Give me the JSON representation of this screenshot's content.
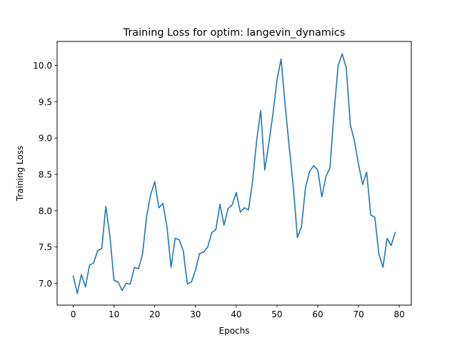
{
  "chart_data": {
    "type": "line",
    "title": "Training Loss for optim: langevin_dynamics",
    "xlabel": "Epochs",
    "ylabel": "Training Loss",
    "xlim": [
      -3.95,
      82.95
    ],
    "ylim": [
      6.7,
      10.33
    ],
    "xticks": [
      0,
      10,
      20,
      30,
      40,
      50,
      60,
      70,
      80
    ],
    "yticks": [
      7.0,
      7.5,
      8.0,
      8.5,
      9.0,
      9.5,
      10.0
    ],
    "xtick_labels": [
      "0",
      "10",
      "20",
      "30",
      "40",
      "50",
      "60",
      "70",
      "80"
    ],
    "ytick_labels": [
      "7.0",
      "7.5",
      "8.0",
      "8.5",
      "9.0",
      "9.5",
      "10.0"
    ],
    "grid": false,
    "legend": "none",
    "series": [
      {
        "color": "#1f77b4",
        "x": [
          0,
          1,
          2,
          3,
          4,
          5,
          6,
          7,
          8,
          9,
          10,
          11,
          12,
          13,
          14,
          15,
          16,
          17,
          18,
          19,
          20,
          21,
          22,
          23,
          24,
          25,
          26,
          27,
          28,
          29,
          30,
          31,
          32,
          33,
          34,
          35,
          36,
          37,
          38,
          39,
          40,
          41,
          42,
          43,
          44,
          45,
          46,
          47,
          48,
          49,
          50,
          51,
          52,
          53,
          54,
          55,
          56,
          57,
          58,
          59,
          60,
          61,
          62,
          63,
          64,
          65,
          66,
          67,
          68,
          69,
          70,
          71,
          72,
          73,
          74,
          75,
          76,
          77,
          78,
          79
        ],
        "values": [
          7.1,
          6.86,
          7.12,
          6.95,
          7.25,
          7.28,
          7.45,
          7.48,
          8.06,
          7.65,
          7.04,
          7.02,
          6.9,
          7.0,
          6.99,
          7.22,
          7.2,
          7.4,
          7.92,
          8.22,
          8.4,
          8.04,
          8.1,
          7.78,
          7.22,
          7.62,
          7.6,
          7.45,
          6.99,
          7.02,
          7.18,
          7.41,
          7.43,
          7.5,
          7.7,
          7.74,
          8.09,
          7.8,
          8.03,
          8.08,
          8.25,
          7.98,
          8.04,
          8.01,
          8.4,
          8.96,
          9.38,
          8.56,
          8.93,
          9.33,
          9.8,
          10.09,
          9.45,
          8.88,
          8.33,
          7.63,
          7.78,
          8.32,
          8.54,
          8.62,
          8.56,
          8.19,
          8.47,
          8.59,
          9.36,
          10.0,
          10.16,
          9.96,
          9.18,
          8.96,
          8.64,
          8.36,
          8.53,
          7.94,
          7.91,
          7.4,
          7.22,
          7.62,
          7.52,
          7.7
        ]
      }
    ]
  }
}
